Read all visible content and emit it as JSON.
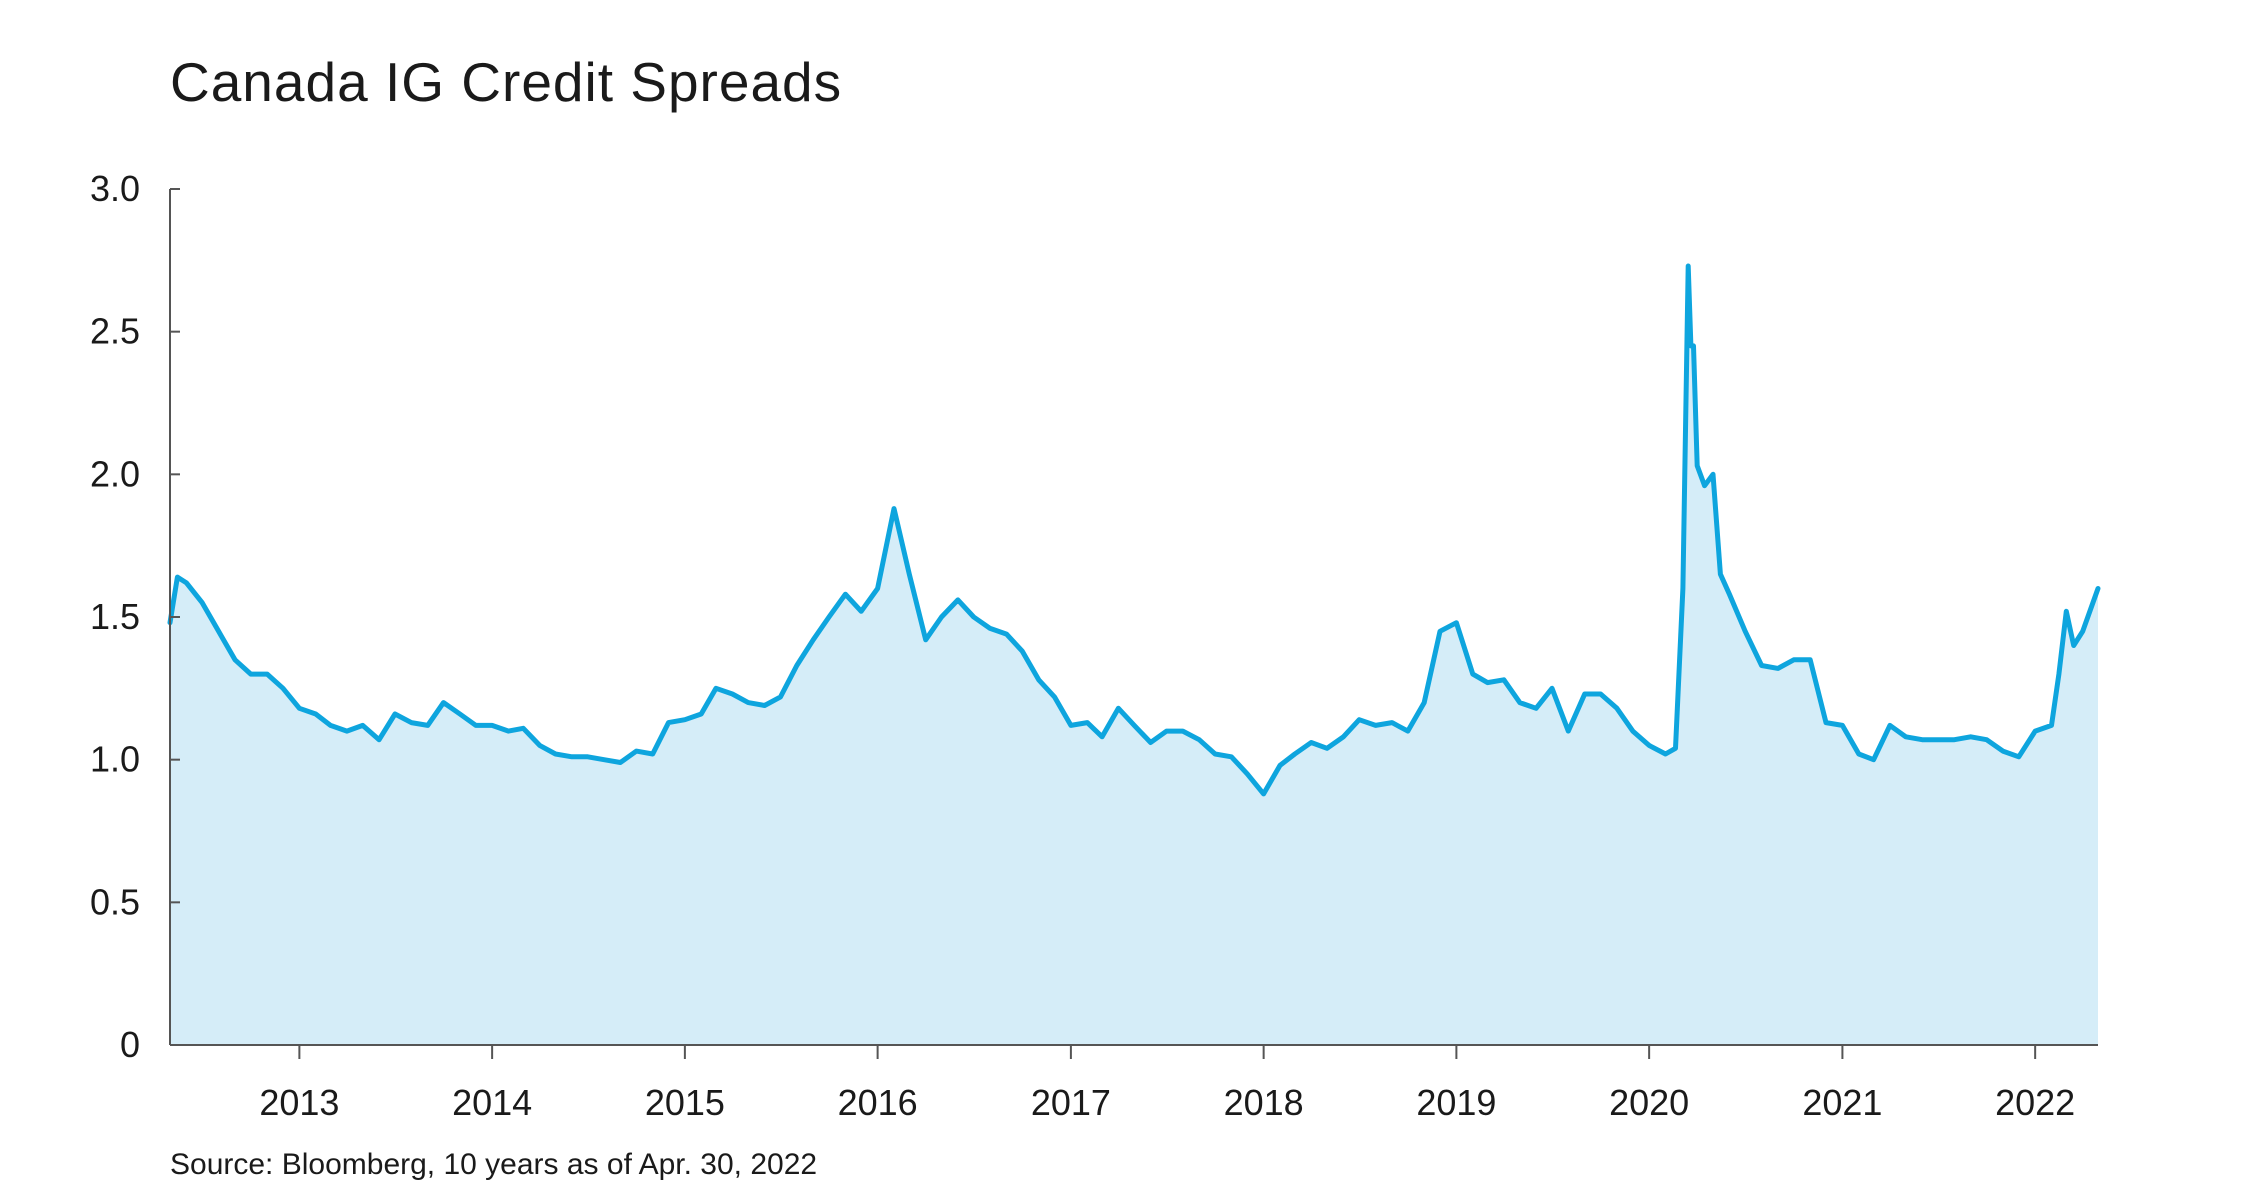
{
  "chart_data": {
    "type": "area",
    "title": "Canada IG Credit Spreads",
    "source": "Source: Bloomberg, 10 years as of Apr. 30, 2022",
    "xlabel": "",
    "ylabel": "",
    "ylim": [
      0,
      3.0
    ],
    "xlim": [
      "2012-05-01",
      "2022-04-30"
    ],
    "y_ticks": [
      0,
      0.5,
      1.0,
      1.5,
      2.0,
      2.5,
      3.0
    ],
    "y_tick_labels": [
      "0",
      "0.5",
      "1.0",
      "1.5",
      "2.0",
      "2.5",
      "3.0"
    ],
    "x_ticks": [
      "2013-01-01",
      "2014-01-01",
      "2015-01-01",
      "2016-01-01",
      "2017-01-01",
      "2018-01-01",
      "2019-01-01",
      "2020-01-01",
      "2021-01-01",
      "2022-01-01"
    ],
    "x_tick_labels": [
      "2013",
      "2014",
      "2015",
      "2016",
      "2017",
      "2018",
      "2019",
      "2020",
      "2021",
      "2022"
    ],
    "grid": false,
    "colors": {
      "line": "#0ea5de",
      "fill": "#d5edf8",
      "axis": "#555555"
    },
    "series": [
      {
        "x": [
          "2012-05-01",
          "2012-05-15",
          "2012-06-01",
          "2012-07-01",
          "2012-08-01",
          "2012-09-01",
          "2012-10-01",
          "2012-11-01",
          "2012-12-01",
          "2013-01-01",
          "2013-02-01",
          "2013-03-01",
          "2013-04-01",
          "2013-05-01",
          "2013-06-01",
          "2013-07-01",
          "2013-08-01",
          "2013-09-01",
          "2013-10-01",
          "2013-11-01",
          "2013-12-01",
          "2014-01-01",
          "2014-02-01",
          "2014-03-01",
          "2014-04-01",
          "2014-05-01",
          "2014-06-01",
          "2014-07-01",
          "2014-08-01",
          "2014-09-01",
          "2014-10-01",
          "2014-11-01",
          "2014-12-01",
          "2015-01-01",
          "2015-02-01",
          "2015-03-01",
          "2015-04-01",
          "2015-05-01",
          "2015-06-01",
          "2015-07-01",
          "2015-08-01",
          "2015-09-01",
          "2015-10-01",
          "2015-11-01",
          "2015-12-01",
          "2016-01-01",
          "2016-02-01",
          "2016-03-01",
          "2016-04-01",
          "2016-05-01",
          "2016-06-01",
          "2016-07-01",
          "2016-08-01",
          "2016-09-01",
          "2016-10-01",
          "2016-11-01",
          "2016-12-01",
          "2017-01-01",
          "2017-02-01",
          "2017-03-01",
          "2017-04-01",
          "2017-05-01",
          "2017-06-01",
          "2017-07-01",
          "2017-08-01",
          "2017-09-01",
          "2017-10-01",
          "2017-11-01",
          "2017-12-01",
          "2018-01-01",
          "2018-02-01",
          "2018-03-01",
          "2018-04-01",
          "2018-05-01",
          "2018-06-01",
          "2018-07-01",
          "2018-08-01",
          "2018-09-01",
          "2018-10-01",
          "2018-11-01",
          "2018-12-01",
          "2019-01-01",
          "2019-02-01",
          "2019-03-01",
          "2019-04-01",
          "2019-05-01",
          "2019-06-01",
          "2019-07-01",
          "2019-08-01",
          "2019-09-01",
          "2019-10-01",
          "2019-11-01",
          "2019-12-01",
          "2020-01-01",
          "2020-02-01",
          "2020-02-20",
          "2020-03-05",
          "2020-03-15",
          "2020-03-20",
          "2020-03-25",
          "2020-04-01",
          "2020-04-15",
          "2020-05-01",
          "2020-05-15",
          "2020-06-01",
          "2020-07-01",
          "2020-08-01",
          "2020-09-01",
          "2020-10-01",
          "2020-11-01",
          "2020-12-01",
          "2021-01-01",
          "2021-02-01",
          "2021-03-01",
          "2021-04-01",
          "2021-05-01",
          "2021-06-01",
          "2021-07-01",
          "2021-08-01",
          "2021-09-01",
          "2021-10-01",
          "2021-11-01",
          "2021-12-01",
          "2022-01-01",
          "2022-02-01",
          "2022-02-15",
          "2022-03-01",
          "2022-03-15",
          "2022-04-01",
          "2022-04-30"
        ],
        "values": [
          1.48,
          1.64,
          1.62,
          1.55,
          1.45,
          1.35,
          1.3,
          1.3,
          1.25,
          1.18,
          1.16,
          1.12,
          1.1,
          1.12,
          1.07,
          1.16,
          1.13,
          1.12,
          1.2,
          1.16,
          1.12,
          1.12,
          1.1,
          1.11,
          1.05,
          1.02,
          1.01,
          1.01,
          1.0,
          0.99,
          1.03,
          1.02,
          1.13,
          1.14,
          1.16,
          1.25,
          1.23,
          1.2,
          1.19,
          1.22,
          1.33,
          1.42,
          1.5,
          1.58,
          1.52,
          1.6,
          1.88,
          1.65,
          1.42,
          1.5,
          1.56,
          1.5,
          1.46,
          1.44,
          1.38,
          1.28,
          1.22,
          1.12,
          1.13,
          1.08,
          1.18,
          1.12,
          1.06,
          1.1,
          1.1,
          1.07,
          1.02,
          1.01,
          0.95,
          0.88,
          0.98,
          1.02,
          1.06,
          1.04,
          1.08,
          1.14,
          1.12,
          1.13,
          1.1,
          1.2,
          1.45,
          1.48,
          1.3,
          1.27,
          1.28,
          1.2,
          1.18,
          1.25,
          1.1,
          1.23,
          1.23,
          1.18,
          1.1,
          1.05,
          1.02,
          1.04,
          1.6,
          2.73,
          2.45,
          2.45,
          2.03,
          1.96,
          2.0,
          1.65,
          1.58,
          1.45,
          1.33,
          1.32,
          1.35,
          1.35,
          1.13,
          1.12,
          1.02,
          1.0,
          1.12,
          1.08,
          1.07,
          1.07,
          1.07,
          1.08,
          1.07,
          1.03,
          1.01,
          1.1,
          1.12,
          1.3,
          1.52,
          1.4,
          1.45,
          1.6
        ]
      }
    ]
  }
}
